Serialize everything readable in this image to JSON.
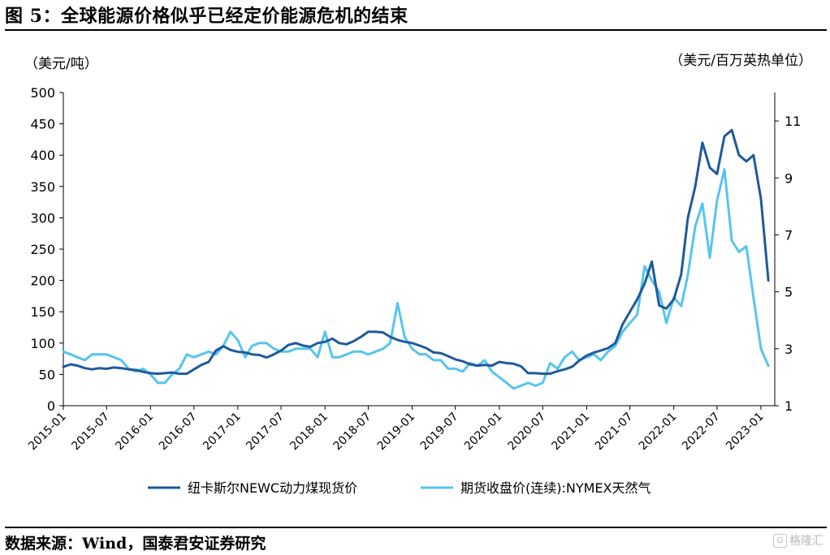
{
  "figure": {
    "title": "图 5：全球能源价格似乎已经定价能源危机的结束",
    "source": "数据来源：Wind，国泰君安证券研究",
    "watermark": "格隆汇"
  },
  "colors": {
    "coal": "#1f5a9a",
    "gas": "#57c4ef",
    "axis": "#000000"
  },
  "chart_data": {
    "type": "line",
    "title": "",
    "left_axis": {
      "unit_label": "（美元/吨）",
      "ylim": [
        0,
        500
      ],
      "ticks": [
        0,
        50,
        100,
        150,
        200,
        250,
        300,
        350,
        400,
        450,
        500
      ]
    },
    "right_axis": {
      "unit_label": "（美元/百万英热单位）",
      "ylim": [
        1,
        12
      ],
      "ticks": [
        1,
        3,
        5,
        7,
        9,
        11
      ]
    },
    "x_range": [
      "2015-01-01",
      "2023-02-28"
    ],
    "x_ticks": [
      "2015-01",
      "2015-07",
      "2016-01",
      "2016-07",
      "2017-01",
      "2017-07",
      "2018-01",
      "2018-07",
      "2019-01",
      "2019-07",
      "2020-01",
      "2020-07",
      "2021-01",
      "2021-07",
      "2022-01",
      "2022-07",
      "2023-01"
    ],
    "grid": false,
    "legend_position": "bottom",
    "series": [
      {
        "name": "纽卡斯尔NEWC动力煤现货价",
        "axis": "left",
        "color": "#1f5a9a",
        "x": [
          "2015-01",
          "2015-02",
          "2015-03",
          "2015-04",
          "2015-05",
          "2015-06",
          "2015-07",
          "2015-08",
          "2015-09",
          "2015-10",
          "2015-11",
          "2015-12",
          "2016-01",
          "2016-02",
          "2016-03",
          "2016-04",
          "2016-05",
          "2016-06",
          "2016-07",
          "2016-08",
          "2016-09",
          "2016-10",
          "2016-11",
          "2016-12",
          "2017-01",
          "2017-02",
          "2017-03",
          "2017-04",
          "2017-05",
          "2017-06",
          "2017-07",
          "2017-08",
          "2017-09",
          "2017-10",
          "2017-11",
          "2017-12",
          "2018-01",
          "2018-02",
          "2018-03",
          "2018-04",
          "2018-05",
          "2018-06",
          "2018-07",
          "2018-08",
          "2018-09",
          "2018-10",
          "2018-11",
          "2018-12",
          "2019-01",
          "2019-02",
          "2019-03",
          "2019-04",
          "2019-05",
          "2019-06",
          "2019-07",
          "2019-08",
          "2019-09",
          "2019-10",
          "2019-11",
          "2019-12",
          "2020-01",
          "2020-02",
          "2020-03",
          "2020-04",
          "2020-05",
          "2020-06",
          "2020-07",
          "2020-08",
          "2020-09",
          "2020-10",
          "2020-11",
          "2020-12",
          "2021-01",
          "2021-02",
          "2021-03",
          "2021-04",
          "2021-05",
          "2021-06",
          "2021-07",
          "2021-08",
          "2021-09",
          "2021-10",
          "2021-11",
          "2021-12",
          "2022-01",
          "2022-02",
          "2022-03",
          "2022-04",
          "2022-05",
          "2022-06",
          "2022-07",
          "2022-08",
          "2022-09",
          "2022-10",
          "2022-11",
          "2022-12",
          "2023-01",
          "2023-02"
        ],
        "values": [
          62,
          66,
          64,
          60,
          58,
          60,
          59,
          61,
          60,
          58,
          57,
          54,
          52,
          51,
          52,
          53,
          51,
          51,
          58,
          65,
          70,
          88,
          95,
          89,
          86,
          85,
          82,
          81,
          77,
          82,
          88,
          97,
          100,
          96,
          94,
          100,
          102,
          107,
          100,
          98,
          103,
          110,
          118,
          118,
          117,
          110,
          105,
          102,
          100,
          96,
          92,
          85,
          84,
          79,
          74,
          71,
          66,
          64,
          65,
          64,
          70,
          68,
          67,
          63,
          52,
          52,
          51,
          51,
          55,
          58,
          62,
          72,
          80,
          85,
          88,
          92,
          100,
          130,
          150,
          170,
          195,
          230,
          160,
          155,
          170,
          210,
          300,
          350,
          420,
          380,
          370,
          430,
          440,
          400,
          390,
          400,
          330,
          200
        ]
      },
      {
        "name": "期货收盘价(连续):NYMEX天然气",
        "axis": "right",
        "color": "#57c4ef",
        "x": [
          "2015-01",
          "2015-02",
          "2015-03",
          "2015-04",
          "2015-05",
          "2015-06",
          "2015-07",
          "2015-08",
          "2015-09",
          "2015-10",
          "2015-11",
          "2015-12",
          "2016-01",
          "2016-02",
          "2016-03",
          "2016-04",
          "2016-05",
          "2016-06",
          "2016-07",
          "2016-08",
          "2016-09",
          "2016-10",
          "2016-11",
          "2016-12",
          "2017-01",
          "2017-02",
          "2017-03",
          "2017-04",
          "2017-05",
          "2017-06",
          "2017-07",
          "2017-08",
          "2017-09",
          "2017-10",
          "2017-11",
          "2017-12",
          "2018-01",
          "2018-02",
          "2018-03",
          "2018-04",
          "2018-05",
          "2018-06",
          "2018-07",
          "2018-08",
          "2018-09",
          "2018-10",
          "2018-11",
          "2018-12",
          "2019-01",
          "2019-02",
          "2019-03",
          "2019-04",
          "2019-05",
          "2019-06",
          "2019-07",
          "2019-08",
          "2019-09",
          "2019-10",
          "2019-11",
          "2019-12",
          "2020-01",
          "2020-02",
          "2020-03",
          "2020-04",
          "2020-05",
          "2020-06",
          "2020-07",
          "2020-08",
          "2020-09",
          "2020-10",
          "2020-11",
          "2020-12",
          "2021-01",
          "2021-02",
          "2021-03",
          "2021-04",
          "2021-05",
          "2021-06",
          "2021-07",
          "2021-08",
          "2021-09",
          "2021-10",
          "2021-11",
          "2021-12",
          "2022-01",
          "2022-02",
          "2022-03",
          "2022-04",
          "2022-05",
          "2022-06",
          "2022-07",
          "2022-08",
          "2022-09",
          "2022-10",
          "2022-11",
          "2022-12",
          "2023-01",
          "2023-02"
        ],
        "values": [
          2.9,
          2.8,
          2.7,
          2.6,
          2.8,
          2.8,
          2.8,
          2.7,
          2.6,
          2.3,
          2.2,
          2.3,
          2.1,
          1.8,
          1.8,
          2.1,
          2.3,
          2.8,
          2.7,
          2.8,
          2.9,
          2.8,
          3.1,
          3.6,
          3.3,
          2.7,
          3.1,
          3.2,
          3.2,
          3.0,
          2.9,
          2.9,
          3.0,
          3.0,
          3.0,
          2.7,
          3.6,
          2.7,
          2.7,
          2.8,
          2.9,
          2.9,
          2.8,
          2.9,
          3.0,
          3.2,
          4.6,
          3.4,
          3.0,
          2.8,
          2.8,
          2.6,
          2.6,
          2.3,
          2.3,
          2.2,
          2.5,
          2.4,
          2.6,
          2.2,
          2.0,
          1.8,
          1.6,
          1.7,
          1.8,
          1.7,
          1.8,
          2.5,
          2.3,
          2.7,
          2.9,
          2.6,
          2.7,
          2.8,
          2.6,
          2.9,
          3.1,
          3.6,
          3.9,
          4.2,
          5.9,
          5.4,
          5.0,
          3.9,
          4.8,
          4.5,
          5.6,
          7.3,
          8.1,
          6.2,
          8.2,
          9.3,
          6.8,
          6.4,
          6.6,
          4.8,
          3.0,
          2.4
        ]
      }
    ]
  }
}
